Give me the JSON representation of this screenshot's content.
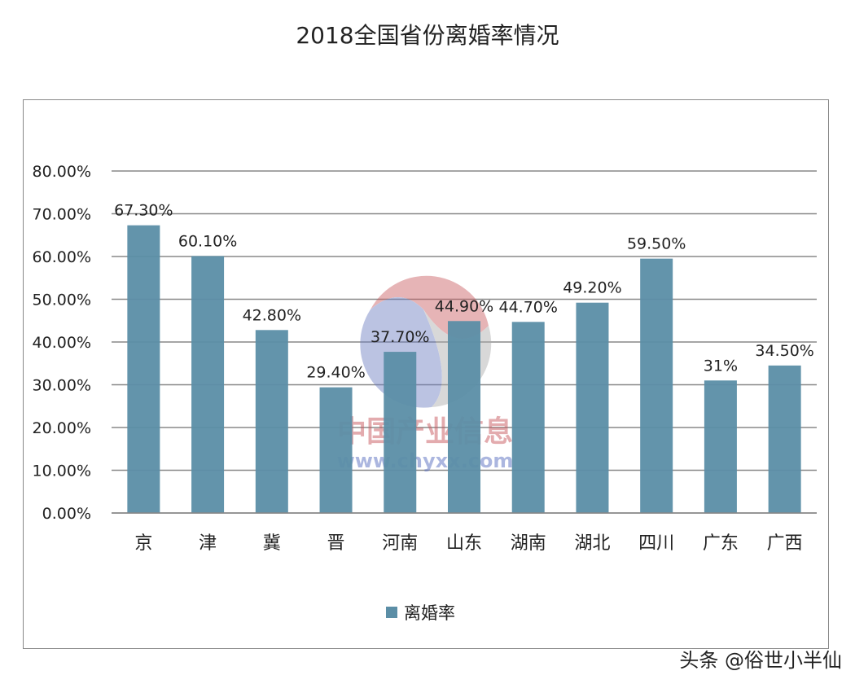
{
  "chart_data": {
    "type": "bar",
    "title": "2018全国省份离婚率情况",
    "categories": [
      "京",
      "津",
      "冀",
      "晋",
      "河南",
      "山东",
      "湖南",
      "湖北",
      "四川",
      "广东",
      "广西"
    ],
    "series": [
      {
        "name": "离婚率",
        "values": [
          67.3,
          60.1,
          42.8,
          29.4,
          37.7,
          44.9,
          44.7,
          49.2,
          59.5,
          31,
          34.5
        ],
        "color": "#5b8ea6"
      }
    ],
    "data_labels": [
      "67.30%",
      "60.10%",
      "42.80%",
      "29.40%",
      "37.70%",
      "44.90%",
      "44.70%",
      "49.20%",
      "59.50%",
      "31%",
      "34.50%"
    ],
    "yticks": [
      "0.00%",
      "10.00%",
      "20.00%",
      "30.00%",
      "40.00%",
      "50.00%",
      "60.00%",
      "70.00%",
      "80.00%"
    ],
    "ylim": [
      0,
      80
    ],
    "grid": true,
    "legend_placement": "bottom"
  },
  "watermark": {
    "name": "中国产业信息",
    "url": "www.chyxx.com"
  },
  "footer": "头条 @俗世小半仙"
}
